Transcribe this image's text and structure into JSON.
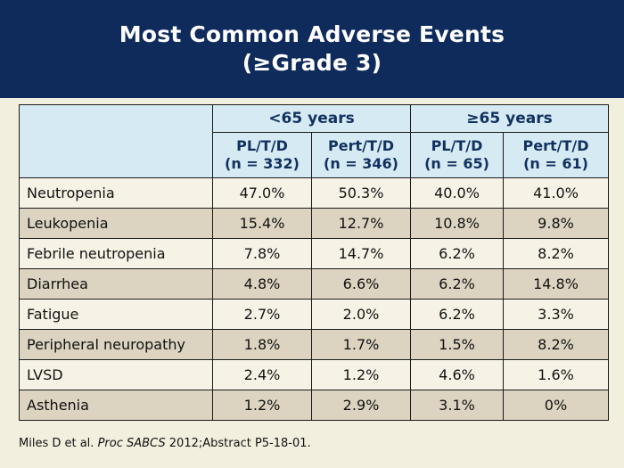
{
  "title": {
    "line1": "Most Common Adverse Events",
    "line2": "(≥Grade 3)"
  },
  "table": {
    "groups": [
      "<65 years",
      "≥65 years"
    ],
    "columns": [
      {
        "line1": "PL/T/D",
        "line2": "(n = 332)"
      },
      {
        "line1": "Pert/T/D",
        "line2": "(n = 346)"
      },
      {
        "line1": "PL/T/D",
        "line2": "(n = 65)"
      },
      {
        "line1": "Pert/T/D",
        "line2": "(n = 61)"
      }
    ],
    "rows": [
      {
        "event": "Neutropenia",
        "values": [
          "47.0%",
          "50.3%",
          "40.0%",
          "41.0%"
        ]
      },
      {
        "event": "Leukopenia",
        "values": [
          "15.4%",
          "12.7%",
          "10.8%",
          "9.8%"
        ]
      },
      {
        "event": "Febrile neutropenia",
        "values": [
          "7.8%",
          "14.7%",
          "6.2%",
          "8.2%"
        ]
      },
      {
        "event": "Diarrhea",
        "values": [
          "4.8%",
          "6.6%",
          "6.2%",
          "14.8%"
        ]
      },
      {
        "event": "Fatigue",
        "values": [
          "2.7%",
          "2.0%",
          "6.2%",
          "3.3%"
        ]
      },
      {
        "event": "Peripheral neuropathy",
        "values": [
          "1.8%",
          "1.7%",
          "1.5%",
          "8.2%"
        ]
      },
      {
        "event": "LVSD",
        "values": [
          "2.4%",
          "1.2%",
          "4.6%",
          "1.6%"
        ]
      },
      {
        "event": "Asthenia",
        "values": [
          "1.2%",
          "2.9%",
          "3.1%",
          "0%"
        ]
      }
    ]
  },
  "citation": {
    "authors": "Miles D et al.",
    "journal": "Proc SABCS",
    "rest": "2012;Abstract P5-18-01."
  },
  "colors": {
    "title_bg": "#0f2b5b",
    "header_bg": "#d6eaf3",
    "header_text": "#10305f",
    "row_light": "#f6f3e6",
    "row_dark": "#dcd4c0",
    "page_bg": "#f3efdf"
  }
}
